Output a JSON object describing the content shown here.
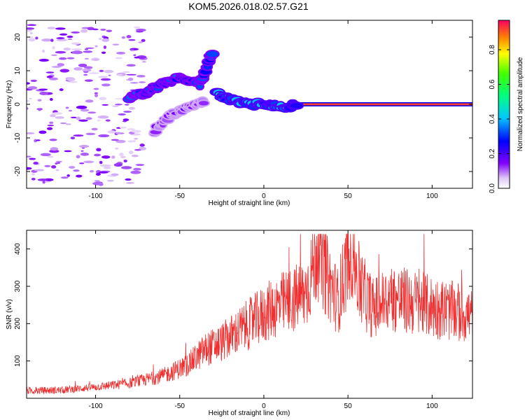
{
  "title": "KOM5.2026.018.02.57.G21",
  "chart_data": [
    {
      "type": "heatmap",
      "xlabel": "Height of straight line (km)",
      "ylabel": "Frequency (Hz)",
      "xlim": [
        -141,
        124
      ],
      "ylim": [
        -25,
        25
      ],
      "xticks": [
        -100,
        -50,
        0,
        50,
        100
      ],
      "yticks": [
        -20,
        -10,
        0,
        10,
        20
      ],
      "colorbar": {
        "label": "Normalized spectral amplitude",
        "range": [
          0,
          0.97
        ],
        "ticks": [
          "0.0",
          "0.2",
          "0.4",
          "0.6",
          "0.8"
        ],
        "tick_values": [
          0,
          0.2,
          0.4,
          0.6,
          0.8
        ]
      },
      "features": [
        {
          "name": "dc-line",
          "x_from": 20,
          "x_to": 124,
          "freq": 0,
          "amplitude": 0.95
        },
        {
          "name": "main-branch",
          "points": [
            [
              -28,
              3
            ],
            [
              -20,
              1.5
            ],
            [
              -10,
              0
            ],
            [
              0,
              0
            ],
            [
              10,
              -1
            ],
            [
              20,
              0
            ]
          ],
          "amplitude": 0.4
        },
        {
          "name": "upper-branch",
          "points": [
            [
              -80,
              2
            ],
            [
              -70,
              3.5
            ],
            [
              -60,
              6
            ],
            [
              -50,
              8
            ],
            [
              -38,
              6
            ],
            [
              -30,
              16
            ]
          ],
          "amplitude": 0.3
        },
        {
          "name": "lower-branch",
          "points": [
            [
              -65,
              -8
            ],
            [
              -55,
              -3
            ],
            [
              -45,
              -1
            ],
            [
              -35,
              1
            ]
          ],
          "amplitude": 0.15
        }
      ]
    },
    {
      "type": "line",
      "xlabel": "Height of straight line (km)",
      "ylabel": "SNR (v/v)",
      "xlim": [
        -141,
        124
      ],
      "ylim": [
        0,
        450
      ],
      "xticks": [
        -100,
        -50,
        0,
        50,
        100
      ],
      "yticks": [
        100,
        200,
        300,
        400
      ],
      "color": "#f03030",
      "envelope": [
        {
          "x": -140,
          "y": 20
        },
        {
          "x": -120,
          "y": 22
        },
        {
          "x": -100,
          "y": 30
        },
        {
          "x": -80,
          "y": 40
        },
        {
          "x": -60,
          "y": 60
        },
        {
          "x": -45,
          "y": 90
        },
        {
          "x": -35,
          "y": 130
        },
        {
          "x": -25,
          "y": 150
        },
        {
          "x": -15,
          "y": 180
        },
        {
          "x": -5,
          "y": 210
        },
        {
          "x": 5,
          "y": 240
        },
        {
          "x": 15,
          "y": 260
        },
        {
          "x": 25,
          "y": 280
        },
        {
          "x": 32,
          "y": 400
        },
        {
          "x": 38,
          "y": 320
        },
        {
          "x": 44,
          "y": 260
        },
        {
          "x": 52,
          "y": 410
        },
        {
          "x": 57,
          "y": 300
        },
        {
          "x": 65,
          "y": 240
        },
        {
          "x": 75,
          "y": 270
        },
        {
          "x": 85,
          "y": 260
        },
        {
          "x": 95,
          "y": 250
        },
        {
          "x": 105,
          "y": 240
        },
        {
          "x": 115,
          "y": 230
        },
        {
          "x": 124,
          "y": 220
        }
      ]
    }
  ]
}
